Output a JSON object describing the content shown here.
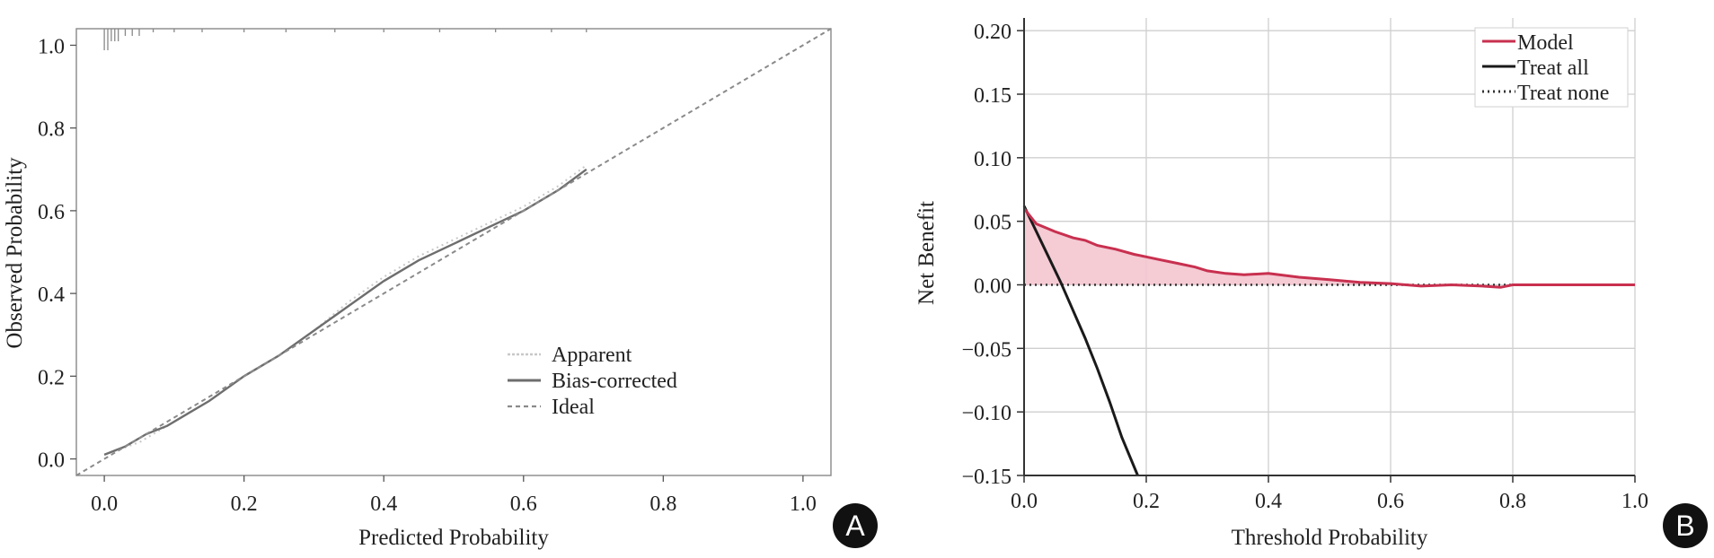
{
  "chart_data": [
    {
      "type": "line",
      "panel_label": "A",
      "title": "",
      "xlabel": "Predicted Probability",
      "ylabel": "Observed Probability",
      "xlim": [
        -0.04,
        1.04
      ],
      "ylim": [
        -0.04,
        1.04
      ],
      "xticks": [
        0.0,
        0.2,
        0.4,
        0.6,
        0.8,
        1.0
      ],
      "xtick_labels": [
        "0.0",
        "0.2",
        "0.4",
        "0.6",
        "0.8",
        "1.0"
      ],
      "yticks": [
        0.0,
        0.2,
        0.4,
        0.6,
        0.8,
        1.0
      ],
      "ytick_labels": [
        "0.0",
        "0.2",
        "0.4",
        "0.6",
        "0.8",
        "1.0"
      ],
      "legend_position": "bottom-right",
      "series": [
        {
          "name": "Apparent",
          "style": "dotted",
          "color": "#c8c8c8",
          "x": [
            0.0,
            0.05,
            0.1,
            0.15,
            0.2,
            0.25,
            0.3,
            0.35,
            0.4,
            0.45,
            0.5,
            0.55,
            0.6,
            0.65,
            0.69
          ],
          "y": [
            0.01,
            0.04,
            0.09,
            0.14,
            0.2,
            0.25,
            0.31,
            0.38,
            0.44,
            0.49,
            0.53,
            0.57,
            0.61,
            0.66,
            0.71
          ]
        },
        {
          "name": "Bias-corrected",
          "style": "solid",
          "color": "#6e6e6e",
          "x": [
            0.0,
            0.03,
            0.06,
            0.09,
            0.12,
            0.15,
            0.2,
            0.25,
            0.3,
            0.35,
            0.4,
            0.45,
            0.5,
            0.55,
            0.6,
            0.65,
            0.69
          ],
          "y": [
            0.01,
            0.03,
            0.06,
            0.08,
            0.11,
            0.14,
            0.2,
            0.25,
            0.31,
            0.37,
            0.43,
            0.48,
            0.52,
            0.56,
            0.6,
            0.65,
            0.7
          ]
        },
        {
          "name": "Ideal",
          "style": "dashed",
          "color": "#8a8a8a",
          "x": [
            -0.04,
            1.04
          ],
          "y": [
            -0.04,
            1.04
          ]
        }
      ],
      "rug_x": [
        0.0,
        0.005,
        0.01,
        0.015,
        0.02,
        0.03,
        0.04,
        0.05,
        0.07,
        0.1,
        0.14,
        0.2,
        0.26,
        0.33,
        0.4,
        0.48,
        0.56,
        0.64,
        0.69
      ]
    },
    {
      "type": "line",
      "panel_label": "B",
      "title": "",
      "xlabel": "Threshold Probability",
      "ylabel": "Net Benefit",
      "xlim": [
        0.0,
        1.0
      ],
      "ylim": [
        -0.15,
        0.21
      ],
      "xticks": [
        0.0,
        0.2,
        0.4,
        0.6,
        0.8,
        1.0
      ],
      "xtick_labels": [
        "0.0",
        "0.2",
        "0.4",
        "0.6",
        "0.8",
        "1.0"
      ],
      "yticks": [
        -0.15,
        -0.1,
        -0.05,
        0.0,
        0.05,
        0.1,
        0.15,
        0.2
      ],
      "ytick_labels": [
        "−0.15",
        "−0.10",
        "−0.05",
        "0.00",
        "0.05",
        "0.10",
        "0.15",
        "0.20"
      ],
      "grid": true,
      "legend_position": "top-right",
      "series": [
        {
          "name": "Model",
          "style": "solid",
          "color": "#c8304f",
          "fill": "#f4c5cf",
          "x": [
            0.0,
            0.02,
            0.05,
            0.08,
            0.1,
            0.12,
            0.15,
            0.18,
            0.2,
            0.22,
            0.25,
            0.28,
            0.3,
            0.33,
            0.36,
            0.4,
            0.45,
            0.5,
            0.55,
            0.6,
            0.65,
            0.7,
            0.75,
            0.78,
            0.8,
            0.85,
            0.9,
            0.95,
            1.0
          ],
          "y": [
            0.06,
            0.048,
            0.042,
            0.037,
            0.035,
            0.031,
            0.028,
            0.024,
            0.022,
            0.02,
            0.017,
            0.014,
            0.011,
            0.009,
            0.008,
            0.009,
            0.006,
            0.004,
            0.002,
            0.001,
            -0.001,
            0.0,
            -0.001,
            -0.002,
            0.0,
            0.0,
            0.0,
            0.0,
            0.0
          ]
        },
        {
          "name": "Treat all",
          "style": "solid",
          "color": "#1a1a1a",
          "x": [
            0.0,
            0.04,
            0.06,
            0.08,
            0.1,
            0.12,
            0.14,
            0.16,
            0.186
          ],
          "y": [
            0.062,
            0.022,
            0.002,
            -0.02,
            -0.042,
            -0.066,
            -0.092,
            -0.12,
            -0.15
          ]
        },
        {
          "name": "Treat none",
          "style": "dotted",
          "color": "#333333",
          "x": [
            0.0,
            1.0
          ],
          "y": [
            0.0,
            0.0
          ]
        }
      ]
    }
  ]
}
